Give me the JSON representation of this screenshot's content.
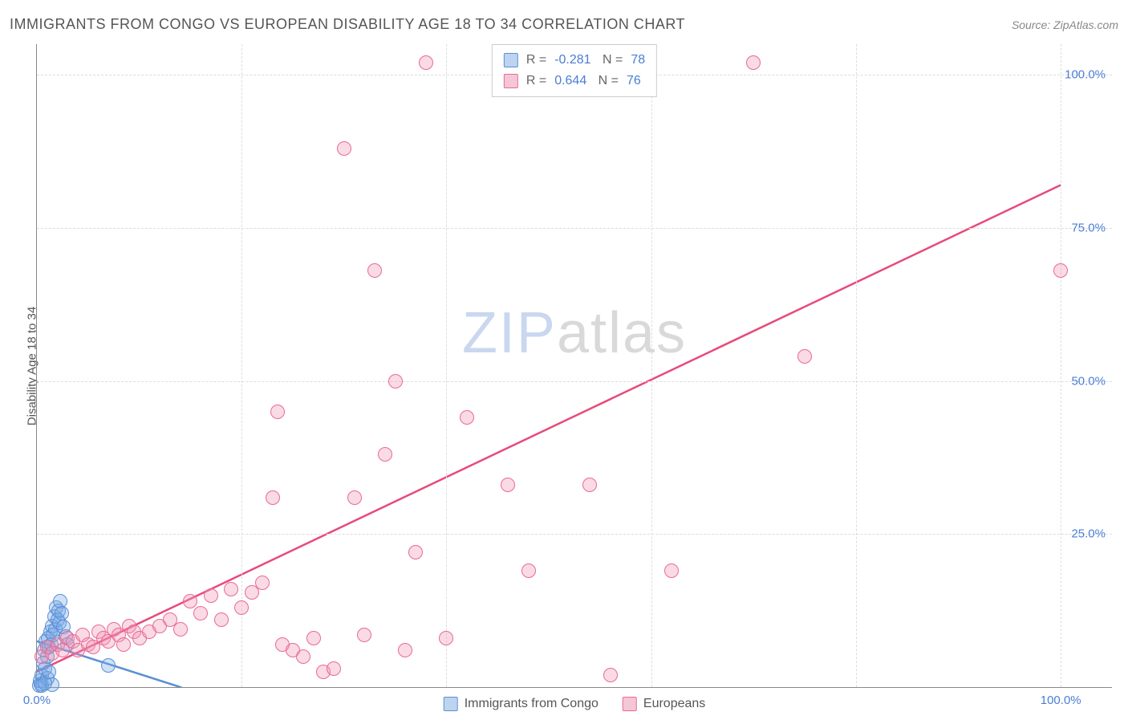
{
  "title": "IMMIGRANTS FROM CONGO VS EUROPEAN DISABILITY AGE 18 TO 34 CORRELATION CHART",
  "source": "Source: ZipAtlas.com",
  "watermark": {
    "part1": "ZIP",
    "part2": "atlas"
  },
  "chart": {
    "type": "scatter",
    "y_label": "Disability Age 18 to 34",
    "xlim": [
      0,
      105
    ],
    "ylim": [
      0,
      105
    ],
    "x_ticks": [
      {
        "v": 0,
        "label": "0.0%"
      },
      {
        "v": 100,
        "label": "100.0%"
      }
    ],
    "x_gridlines": [
      20,
      40,
      60,
      80,
      100
    ],
    "y_ticks": [
      {
        "v": 25,
        "label": "25.0%"
      },
      {
        "v": 50,
        "label": "50.0%"
      },
      {
        "v": 75,
        "label": "75.0%"
      },
      {
        "v": 100,
        "label": "100.0%"
      }
    ],
    "background_color": "#ffffff",
    "grid_color": "#dddddd",
    "axis_color": "#888888",
    "tick_label_color": "#4a7dd6",
    "marker_radius": 9,
    "series": [
      {
        "name": "Immigrants from Congo",
        "fill": "rgba(120,170,230,0.35)",
        "stroke": "#5a8fd6",
        "swatch_fill": "#bcd4f0",
        "swatch_stroke": "#5a8fd6",
        "R": "-0.281",
        "N": "78",
        "trend": {
          "x1": 0,
          "y1": 7.5,
          "x2": 14,
          "y2": 0,
          "color": "#5a8fd6",
          "dash": "0"
        },
        "trend_ext": {
          "x1": 14,
          "y1": 0,
          "x2": 20,
          "y2": -3,
          "color": "#5a8fd6",
          "dash": "6,4"
        },
        "points": [
          [
            0.3,
            1.0
          ],
          [
            0.4,
            0.5
          ],
          [
            0.5,
            2.0
          ],
          [
            0.6,
            4.0
          ],
          [
            0.7,
            6.0
          ],
          [
            0.8,
            3.0
          ],
          [
            0.9,
            7.5
          ],
          [
            1.0,
            5.0
          ],
          [
            1.1,
            8.0
          ],
          [
            1.2,
            6.5
          ],
          [
            1.3,
            9.0
          ],
          [
            1.4,
            7.0
          ],
          [
            1.5,
            10.0
          ],
          [
            1.6,
            8.5
          ],
          [
            1.7,
            11.5
          ],
          [
            1.8,
            9.5
          ],
          [
            1.9,
            13.0
          ],
          [
            2.0,
            11.0
          ],
          [
            2.1,
            12.5
          ],
          [
            2.2,
            10.5
          ],
          [
            2.3,
            14.0
          ],
          [
            2.4,
            12.0
          ],
          [
            2.6,
            9.8
          ],
          [
            2.8,
            8.2
          ],
          [
            3.0,
            7.0
          ],
          [
            0.2,
            0.2
          ],
          [
            0.5,
            0.3
          ],
          [
            1.5,
            0.4
          ],
          [
            1.0,
            1.5
          ],
          [
            0.8,
            0.6
          ],
          [
            1.2,
            2.5
          ],
          [
            7.0,
            3.5
          ]
        ]
      },
      {
        "name": "Europeans",
        "fill": "rgba(240,150,180,0.35)",
        "stroke": "#e86a94",
        "swatch_fill": "#f5c6d6",
        "swatch_stroke": "#e86a94",
        "R": "0.644",
        "N": "76",
        "trend": {
          "x1": 0,
          "y1": 2.5,
          "x2": 100,
          "y2": 82,
          "color": "#e84a7a",
          "dash": "0"
        },
        "points": [
          [
            0.5,
            5.0
          ],
          [
            1.0,
            6.5
          ],
          [
            1.5,
            5.5
          ],
          [
            2.0,
            7.0
          ],
          [
            2.5,
            6.0
          ],
          [
            3.0,
            8.0
          ],
          [
            3.5,
            7.5
          ],
          [
            4.0,
            6.0
          ],
          [
            4.5,
            8.5
          ],
          [
            5.0,
            7.0
          ],
          [
            5.5,
            6.5
          ],
          [
            6.0,
            9.0
          ],
          [
            6.5,
            8.0
          ],
          [
            7.0,
            7.5
          ],
          [
            7.5,
            9.5
          ],
          [
            8.0,
            8.5
          ],
          [
            8.5,
            7.0
          ],
          [
            9.0,
            10.0
          ],
          [
            9.5,
            9.0
          ],
          [
            10.0,
            8.0
          ],
          [
            11.0,
            9.0
          ],
          [
            12.0,
            10.0
          ],
          [
            13.0,
            11.0
          ],
          [
            14.0,
            9.5
          ],
          [
            15.0,
            14.0
          ],
          [
            16.0,
            12.0
          ],
          [
            17.0,
            15.0
          ],
          [
            18.0,
            11.0
          ],
          [
            19.0,
            16.0
          ],
          [
            20.0,
            13.0
          ],
          [
            21.0,
            15.5
          ],
          [
            22.0,
            17.0
          ],
          [
            23.0,
            31.0
          ],
          [
            23.5,
            45.0
          ],
          [
            24.0,
            7.0
          ],
          [
            25.0,
            6.0
          ],
          [
            26.0,
            5.0
          ],
          [
            27.0,
            8.0
          ],
          [
            28.0,
            2.5
          ],
          [
            29.0,
            3.0
          ],
          [
            30.0,
            88.0
          ],
          [
            31.0,
            31.0
          ],
          [
            32.0,
            8.5
          ],
          [
            33.0,
            68.0
          ],
          [
            34.0,
            38.0
          ],
          [
            35.0,
            50.0
          ],
          [
            36.0,
            6.0
          ],
          [
            37.0,
            22.0
          ],
          [
            38.0,
            102.0
          ],
          [
            40.0,
            8.0
          ],
          [
            42.0,
            44.0
          ],
          [
            46.0,
            33.0
          ],
          [
            48.0,
            19.0
          ],
          [
            50.0,
            102.0
          ],
          [
            54.0,
            33.0
          ],
          [
            56.0,
            2.0
          ],
          [
            62.0,
            19.0
          ],
          [
            70.0,
            102.0
          ],
          [
            75.0,
            54.0
          ],
          [
            100.0,
            68.0
          ]
        ]
      }
    ]
  },
  "legend_bottom": [
    {
      "label": "Immigrants from Congo",
      "swatch_fill": "#bcd4f0",
      "swatch_stroke": "#5a8fd6"
    },
    {
      "label": "Europeans",
      "swatch_fill": "#f5c6d6",
      "swatch_stroke": "#e86a94"
    }
  ]
}
